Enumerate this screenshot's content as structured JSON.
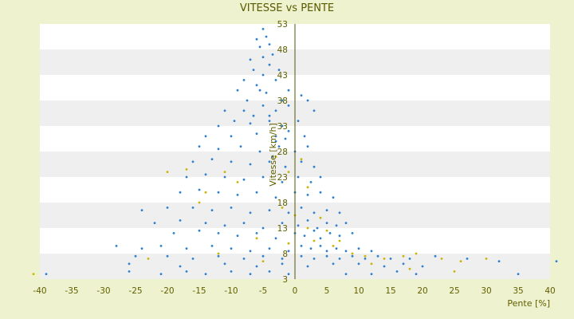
{
  "chart_data": {
    "type": "scatter",
    "title": "VITESSE vs PENTE",
    "xlabel": "Pente [%]",
    "ylabel": "Vitesse [km/h]",
    "xlim": [
      -40,
      40
    ],
    "ylim": [
      3,
      53
    ],
    "x_ticks": [
      -40,
      -35,
      -30,
      -25,
      -20,
      -15,
      -10,
      -5,
      0,
      5,
      10,
      15,
      20,
      25,
      30,
      35,
      40
    ],
    "y_ticks": [
      3,
      8,
      13,
      18,
      23,
      28,
      33,
      38,
      43,
      48,
      53
    ],
    "grid": "horizontal alternating bands",
    "legend": "none",
    "colors": {
      "primary": "#2f7fd0",
      "secondary": "#c8b400",
      "band": "#efefef"
    },
    "series": [
      {
        "color": "#2f7fd0",
        "points": [
          [
            -5,
            52
          ],
          [
            -4.5,
            50.5
          ],
          [
            -6,
            50
          ],
          [
            -5.5,
            48.5
          ],
          [
            -4,
            49
          ],
          [
            -7,
            46
          ],
          [
            -5,
            46.5
          ],
          [
            -3.5,
            47
          ],
          [
            -6.5,
            44
          ],
          [
            -4,
            45
          ],
          [
            -8,
            42
          ],
          [
            -5,
            43
          ],
          [
            -2.5,
            44
          ],
          [
            -9,
            40
          ],
          [
            -6,
            41
          ],
          [
            -3,
            42
          ],
          [
            -1,
            40
          ],
          [
            -7.5,
            38
          ],
          [
            -4.5,
            39.5
          ],
          [
            -2,
            38
          ],
          [
            1,
            39
          ],
          [
            2,
            38
          ],
          [
            -11,
            36
          ],
          [
            -8,
            36
          ],
          [
            -5,
            37
          ],
          [
            -3,
            36
          ],
          [
            -1,
            37
          ],
          [
            3,
            36
          ],
          [
            -12,
            33
          ],
          [
            -9.5,
            34
          ],
          [
            -7,
            33.5
          ],
          [
            -4,
            34
          ],
          [
            -2,
            33
          ],
          [
            0.5,
            34
          ],
          [
            -14,
            31
          ],
          [
            -10,
            31
          ],
          [
            -6,
            31.5
          ],
          [
            -3,
            31
          ],
          [
            -1,
            32
          ],
          [
            1.5,
            31
          ],
          [
            -15,
            29
          ],
          [
            -12,
            28.5
          ],
          [
            -8.5,
            29
          ],
          [
            -5.5,
            28
          ],
          [
            -2.5,
            29
          ],
          [
            0,
            28
          ],
          [
            2,
            29
          ],
          [
            -16,
            26
          ],
          [
            -13,
            26.5
          ],
          [
            -10,
            26
          ],
          [
            -7,
            25.5
          ],
          [
            -4,
            26
          ],
          [
            -1.5,
            25
          ],
          [
            1,
            26
          ],
          [
            3,
            25
          ],
          [
            -17,
            23
          ],
          [
            -14,
            23.5
          ],
          [
            -11,
            23
          ],
          [
            -8,
            22.5
          ],
          [
            -5,
            23
          ],
          [
            -2,
            22
          ],
          [
            0.5,
            23
          ],
          [
            2.5,
            22
          ],
          [
            4,
            23
          ],
          [
            -18,
            20
          ],
          [
            -15,
            20.5
          ],
          [
            -12,
            20
          ],
          [
            -9,
            19.5
          ],
          [
            -6,
            20
          ],
          [
            -3,
            19
          ],
          [
            0,
            20
          ],
          [
            2,
            19.5
          ],
          [
            4,
            20
          ],
          [
            6,
            19
          ],
          [
            -24,
            16.5
          ],
          [
            -20,
            17
          ],
          [
            -16,
            17
          ],
          [
            -13,
            16.5
          ],
          [
            -10,
            17
          ],
          [
            -7,
            16
          ],
          [
            -4,
            16.5
          ],
          [
            -1,
            16
          ],
          [
            1,
            17
          ],
          [
            3,
            16
          ],
          [
            5,
            16.5
          ],
          [
            7,
            16
          ],
          [
            -22,
            14
          ],
          [
            -18,
            14.5
          ],
          [
            -14,
            14
          ],
          [
            -11,
            13.5
          ],
          [
            -8,
            14
          ],
          [
            -5,
            13
          ],
          [
            -2,
            14
          ],
          [
            0.5,
            13.5
          ],
          [
            2,
            14.5
          ],
          [
            3.5,
            13
          ],
          [
            5,
            14
          ],
          [
            6.5,
            13.5
          ],
          [
            8,
            14
          ],
          [
            -19,
            12
          ],
          [
            -15,
            12.5
          ],
          [
            -12,
            12
          ],
          [
            -9,
            11.5
          ],
          [
            -6,
            12
          ],
          [
            -3,
            11
          ],
          [
            0,
            12
          ],
          [
            1.5,
            11.5
          ],
          [
            3,
            12.5
          ],
          [
            4,
            11
          ],
          [
            5.5,
            12
          ],
          [
            7,
            11.5
          ],
          [
            9,
            12
          ],
          [
            -28,
            9.5
          ],
          [
            -24,
            9
          ],
          [
            -21,
            9.5
          ],
          [
            -17,
            9
          ],
          [
            -13,
            9.5
          ],
          [
            -10,
            9
          ],
          [
            -7,
            8.5
          ],
          [
            -4,
            9
          ],
          [
            -1,
            8.5
          ],
          [
            1,
            9.5
          ],
          [
            2.5,
            9
          ],
          [
            4,
            9.5
          ],
          [
            5,
            8.5
          ],
          [
            6.5,
            9
          ],
          [
            8,
            8.5
          ],
          [
            10,
            9
          ],
          [
            12,
            8.5
          ],
          [
            -25,
            7.5
          ],
          [
            -20,
            7.5
          ],
          [
            -16,
            7
          ],
          [
            -12,
            7.5
          ],
          [
            -8,
            7
          ],
          [
            -5,
            7.5
          ],
          [
            -2,
            7
          ],
          [
            1,
            7.5
          ],
          [
            3,
            7
          ],
          [
            5,
            7.5
          ],
          [
            7,
            7
          ],
          [
            9,
            7.5
          ],
          [
            11,
            7
          ],
          [
            13,
            7.5
          ],
          [
            15,
            7
          ],
          [
            18,
            7
          ],
          [
            22,
            7.5
          ],
          [
            27,
            7
          ],
          [
            32,
            6.5
          ],
          [
            -26,
            6
          ],
          [
            -18,
            5.5
          ],
          [
            -11,
            6
          ],
          [
            -6,
            5.5
          ],
          [
            -2,
            6
          ],
          [
            2,
            5.5
          ],
          [
            6,
            6
          ],
          [
            10,
            6
          ],
          [
            14,
            5.5
          ],
          [
            17,
            6
          ],
          [
            20,
            5.5
          ],
          [
            -26,
            4.5
          ],
          [
            -21,
            4
          ],
          [
            -17,
            4.5
          ],
          [
            -14,
            4
          ],
          [
            -10,
            4.5
          ],
          [
            -7,
            4
          ],
          [
            -4,
            4.5
          ],
          [
            -1,
            4
          ],
          [
            8,
            4
          ],
          [
            12,
            4
          ],
          [
            16,
            4.5
          ],
          [
            19,
            4
          ],
          [
            35,
            4
          ],
          [
            -39,
            4
          ],
          [
            41,
            6.5
          ],
          [
            -3,
            30
          ],
          [
            -3.5,
            27
          ],
          [
            -1.5,
            30.5
          ],
          [
            -4,
            35
          ],
          [
            -5.5,
            40
          ],
          [
            -6.5,
            35
          ]
        ]
      },
      {
        "color": "#c8b400",
        "points": [
          [
            -20,
            24
          ],
          [
            -17,
            24.5
          ],
          [
            -14,
            20
          ],
          [
            -11,
            24
          ],
          [
            -9,
            22
          ],
          [
            -15,
            18
          ],
          [
            -3,
            27
          ],
          [
            -1,
            24
          ],
          [
            1,
            26.5
          ],
          [
            2,
            21
          ],
          [
            -2,
            17
          ],
          [
            0,
            15.5
          ],
          [
            2,
            13
          ],
          [
            4,
            15
          ],
          [
            -6,
            11
          ],
          [
            -1,
            10
          ],
          [
            3,
            10.5
          ],
          [
            6,
            9.5
          ],
          [
            9,
            8
          ],
          [
            11,
            7.5
          ],
          [
            14,
            7
          ],
          [
            17,
            7.5
          ],
          [
            19,
            8
          ],
          [
            23,
            7
          ],
          [
            26,
            6.5
          ],
          [
            30,
            7
          ],
          [
            -12,
            8
          ],
          [
            -23,
            7
          ],
          [
            -5,
            6.5
          ],
          [
            12,
            6
          ],
          [
            18,
            5
          ],
          [
            25,
            4.5
          ],
          [
            -41,
            4
          ],
          [
            7,
            10.5
          ],
          [
            5,
            12.5
          ]
        ]
      }
    ]
  }
}
